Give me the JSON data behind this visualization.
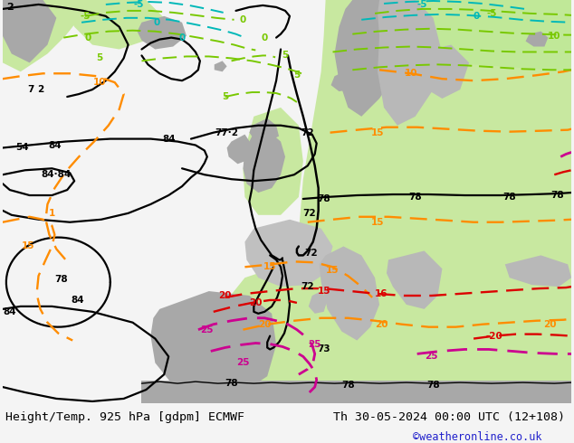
{
  "title_left": "Height/Temp. 925 hPa [gdpm] ECMWF",
  "title_right": "Th 30-05-2024 00:00 UTC (12+108)",
  "credit": "©weatheronline.co.uk",
  "title_fontsize": 9.5,
  "credit_fontsize": 8.5,
  "figsize": [
    6.34,
    4.9
  ],
  "dpi": 100,
  "bg_ocean": "#e8e8e8",
  "bg_green_light": "#c8e8a0",
  "bg_green_warm": "#b0dc78",
  "land_gray": "#a8a8a8",
  "land_gray2": "#c0c0c0",
  "contour_black": "#000000",
  "contour_orange": "#ff8c00",
  "contour_green": "#78c800",
  "contour_cyan": "#00b8b8",
  "contour_red": "#dc0000",
  "contour_magenta": "#cc0090",
  "footer_color": "#000000",
  "credit_color": "#2020cc"
}
